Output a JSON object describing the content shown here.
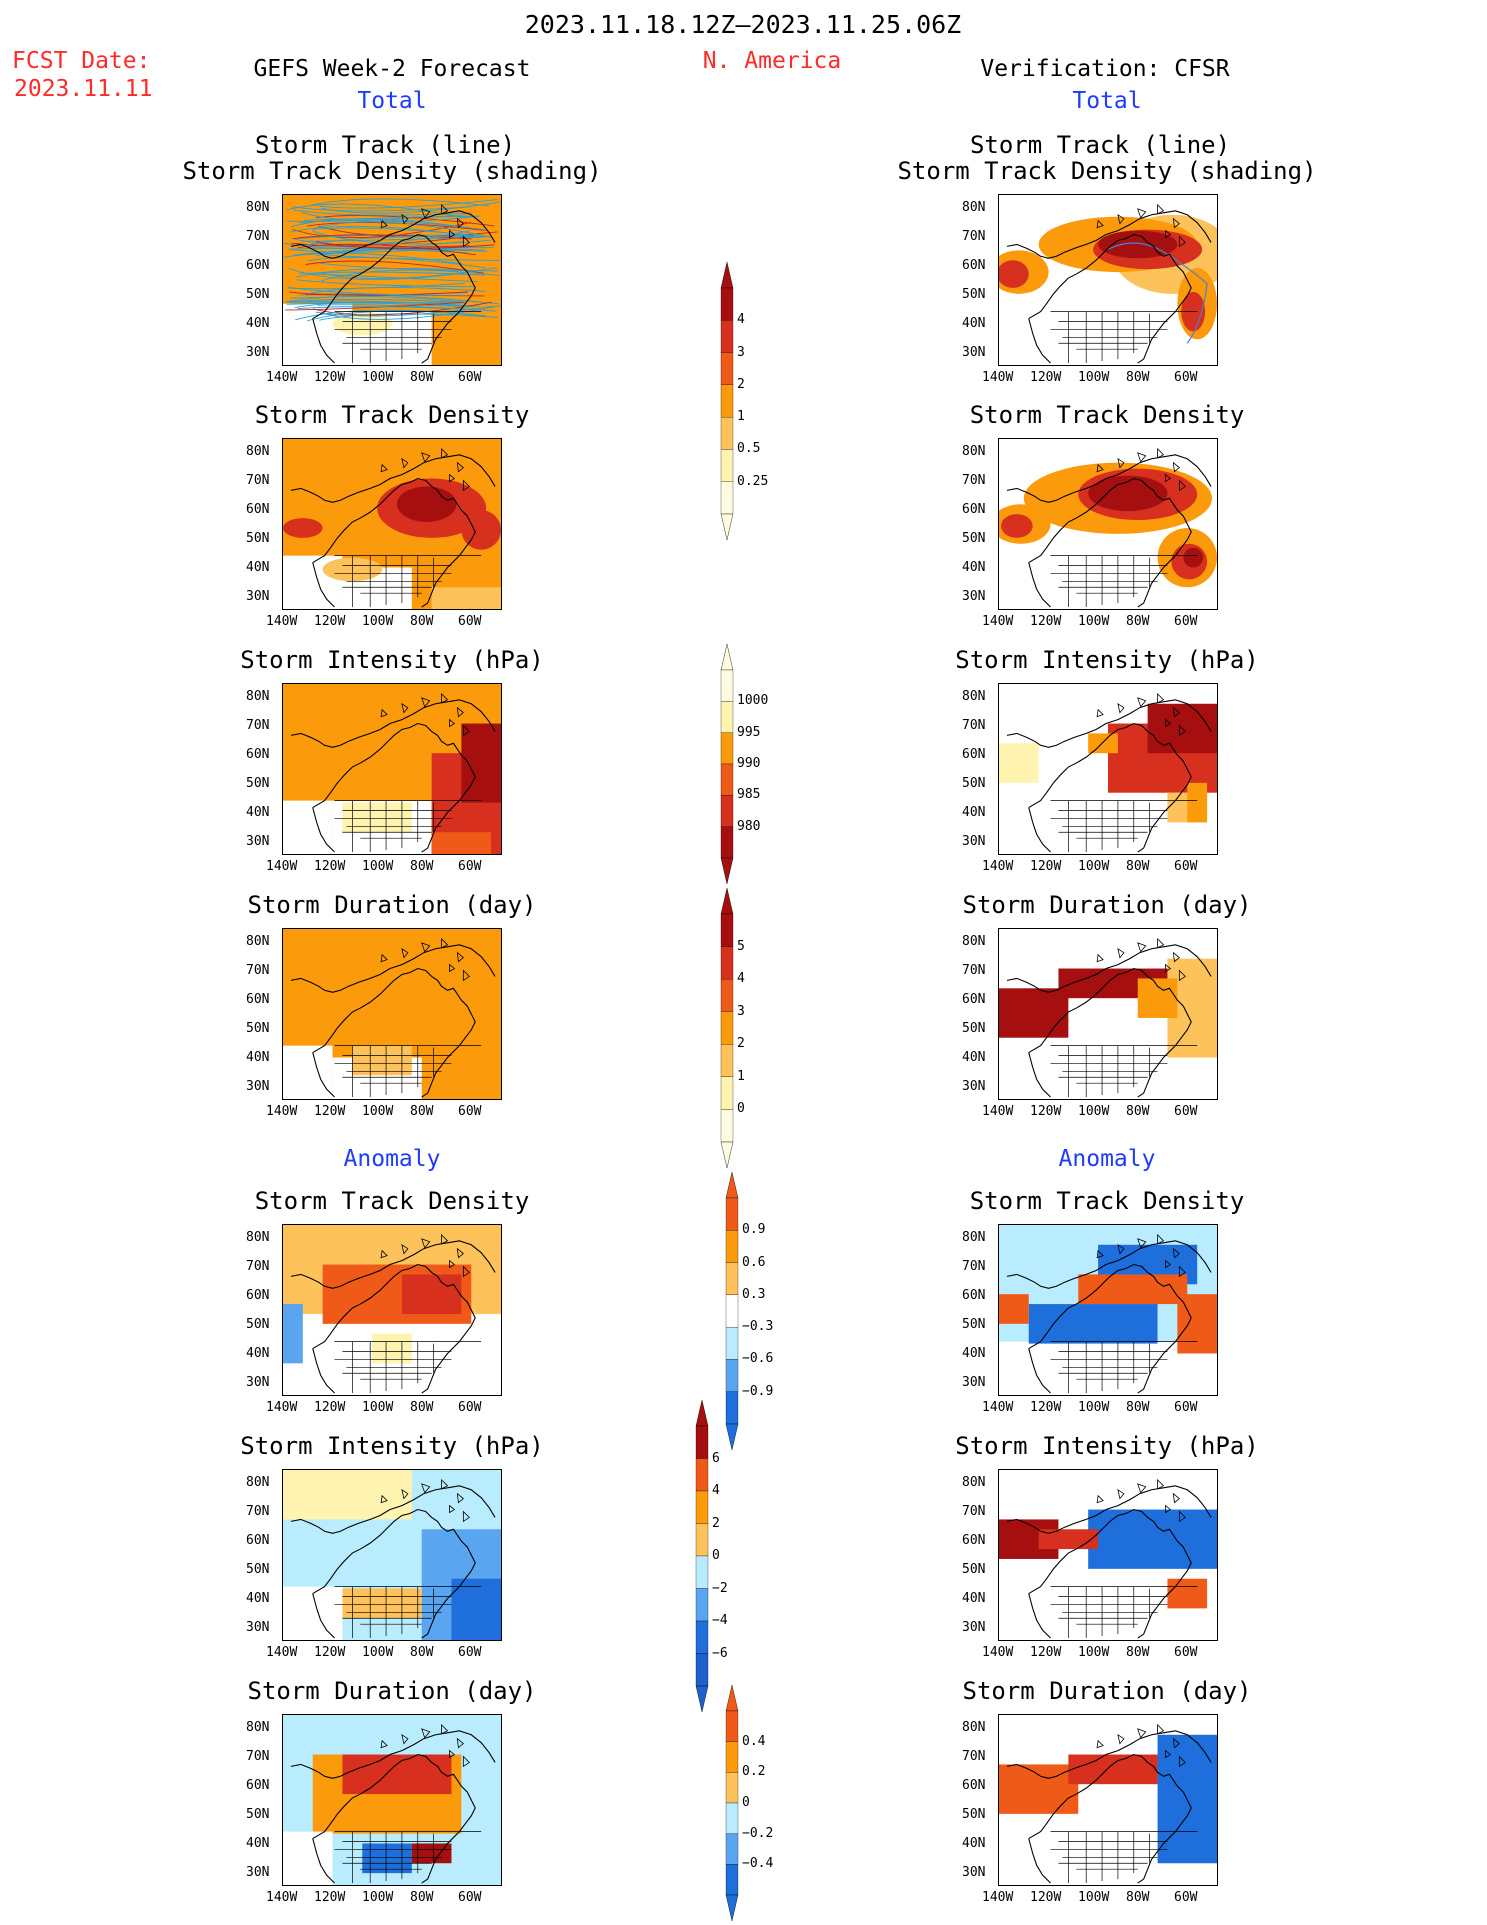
{
  "header": {
    "date_range": "2023.11.18.12Z–2023.11.25.06Z",
    "fcst_label": "FCST Date:",
    "fcst_date": "2023.11.11",
    "left_title": "GEFS Week-2 Forecast",
    "region": "N. America",
    "right_title": "Verification: CFSR",
    "left_section_total": "Total",
    "right_section_total": "Total",
    "left_section_anom": "Anomaly",
    "right_section_anom": "Anomaly"
  },
  "panel_titles": {
    "track_line": "Storm Track (line)",
    "track_shading": "Storm Track Density (shading)",
    "density": "Storm Track Density",
    "intensity": "Storm Intensity (hPa)",
    "duration": "Storm Duration (day)"
  },
  "axes": {
    "lat_ticks": [
      "80N",
      "70N",
      "60N",
      "50N",
      "40N",
      "30N"
    ],
    "lon_ticks": [
      "140W",
      "120W",
      "100W",
      "80W",
      "60W"
    ]
  },
  "colorbars": {
    "density_total": [
      "4",
      "3",
      "2",
      "1",
      "0.5",
      "0.25"
    ],
    "intensity_total": [
      "1000",
      "995",
      "990",
      "985",
      "980"
    ],
    "duration_total": [
      "5",
      "4",
      "3",
      "2",
      "1",
      "0"
    ],
    "density_anom": [
      "0.9",
      "0.6",
      "0.3",
      "−0.3",
      "−0.6",
      "−0.9"
    ],
    "intensity_anom": [
      "6",
      "4",
      "2",
      "0",
      "−2",
      "−4",
      "−6"
    ],
    "duration_anom": [
      "0.4",
      "0.2",
      "0",
      "−0.2",
      "−0.4"
    ]
  },
  "colors": {
    "dark_red": "#a50f0f",
    "red": "#d7301f",
    "orange_red": "#f05a18",
    "orange": "#fb9a0a",
    "light_orange": "#fdc35a",
    "pale_yellow": "#fff3b0",
    "light_blue": "#b9ecff",
    "mid_blue": "#5aa5f0",
    "blue": "#1e6fdc"
  }
}
